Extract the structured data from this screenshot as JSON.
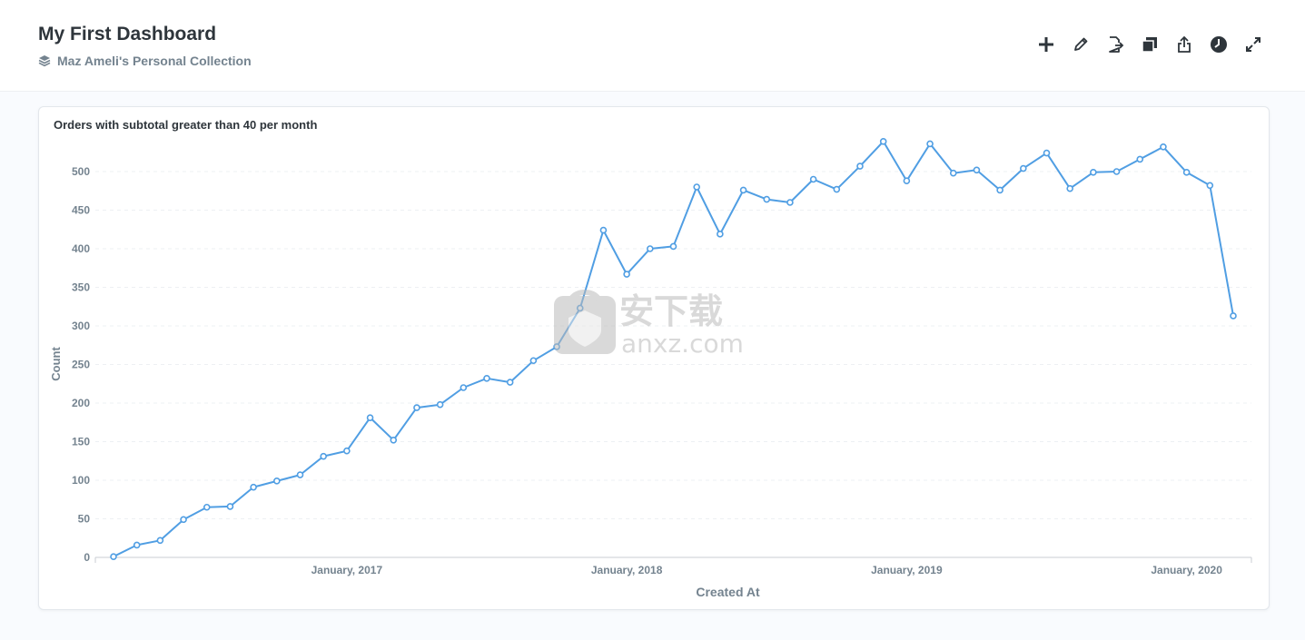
{
  "header": {
    "title": "My First Dashboard",
    "collection": "Maz Ameli's Personal Collection"
  },
  "toolbar": {
    "icons": [
      "plus-icon",
      "pencil-icon",
      "document-arrow-icon",
      "copy-icon",
      "share-icon",
      "clock-icon",
      "fullscreen-icon"
    ]
  },
  "card": {
    "title": "Orders with subtotal greater than 40 per month"
  },
  "watermark": {
    "cn": "安下载",
    "latin": "anxz.com"
  },
  "chart_data": {
    "type": "line",
    "title": "Orders with subtotal greater than 40 per month",
    "xlabel": "Created At",
    "ylabel": "Count",
    "x_tick_labels": [
      "January, 2017",
      "January, 2018",
      "January, 2019",
      "January, 2020"
    ],
    "x_tick_positions": [
      10,
      22,
      34,
      46
    ],
    "y_ticks": [
      0,
      50,
      100,
      150,
      200,
      250,
      300,
      350,
      400,
      450,
      500
    ],
    "ylim": [
      0,
      560
    ],
    "grid": true,
    "line_color": "#509ee3",
    "series": [
      {
        "values": [
          1,
          16,
          22,
          49,
          65,
          66,
          91,
          99,
          107,
          131,
          138,
          181,
          152,
          194,
          198,
          220,
          232,
          227,
          255,
          273,
          323,
          424,
          367,
          400,
          403,
          480,
          419,
          476,
          464,
          460,
          490,
          477,
          507,
          539,
          488,
          536,
          498,
          502,
          476,
          504,
          524,
          478,
          499,
          500,
          516,
          532,
          499,
          482,
          313
        ]
      }
    ]
  }
}
